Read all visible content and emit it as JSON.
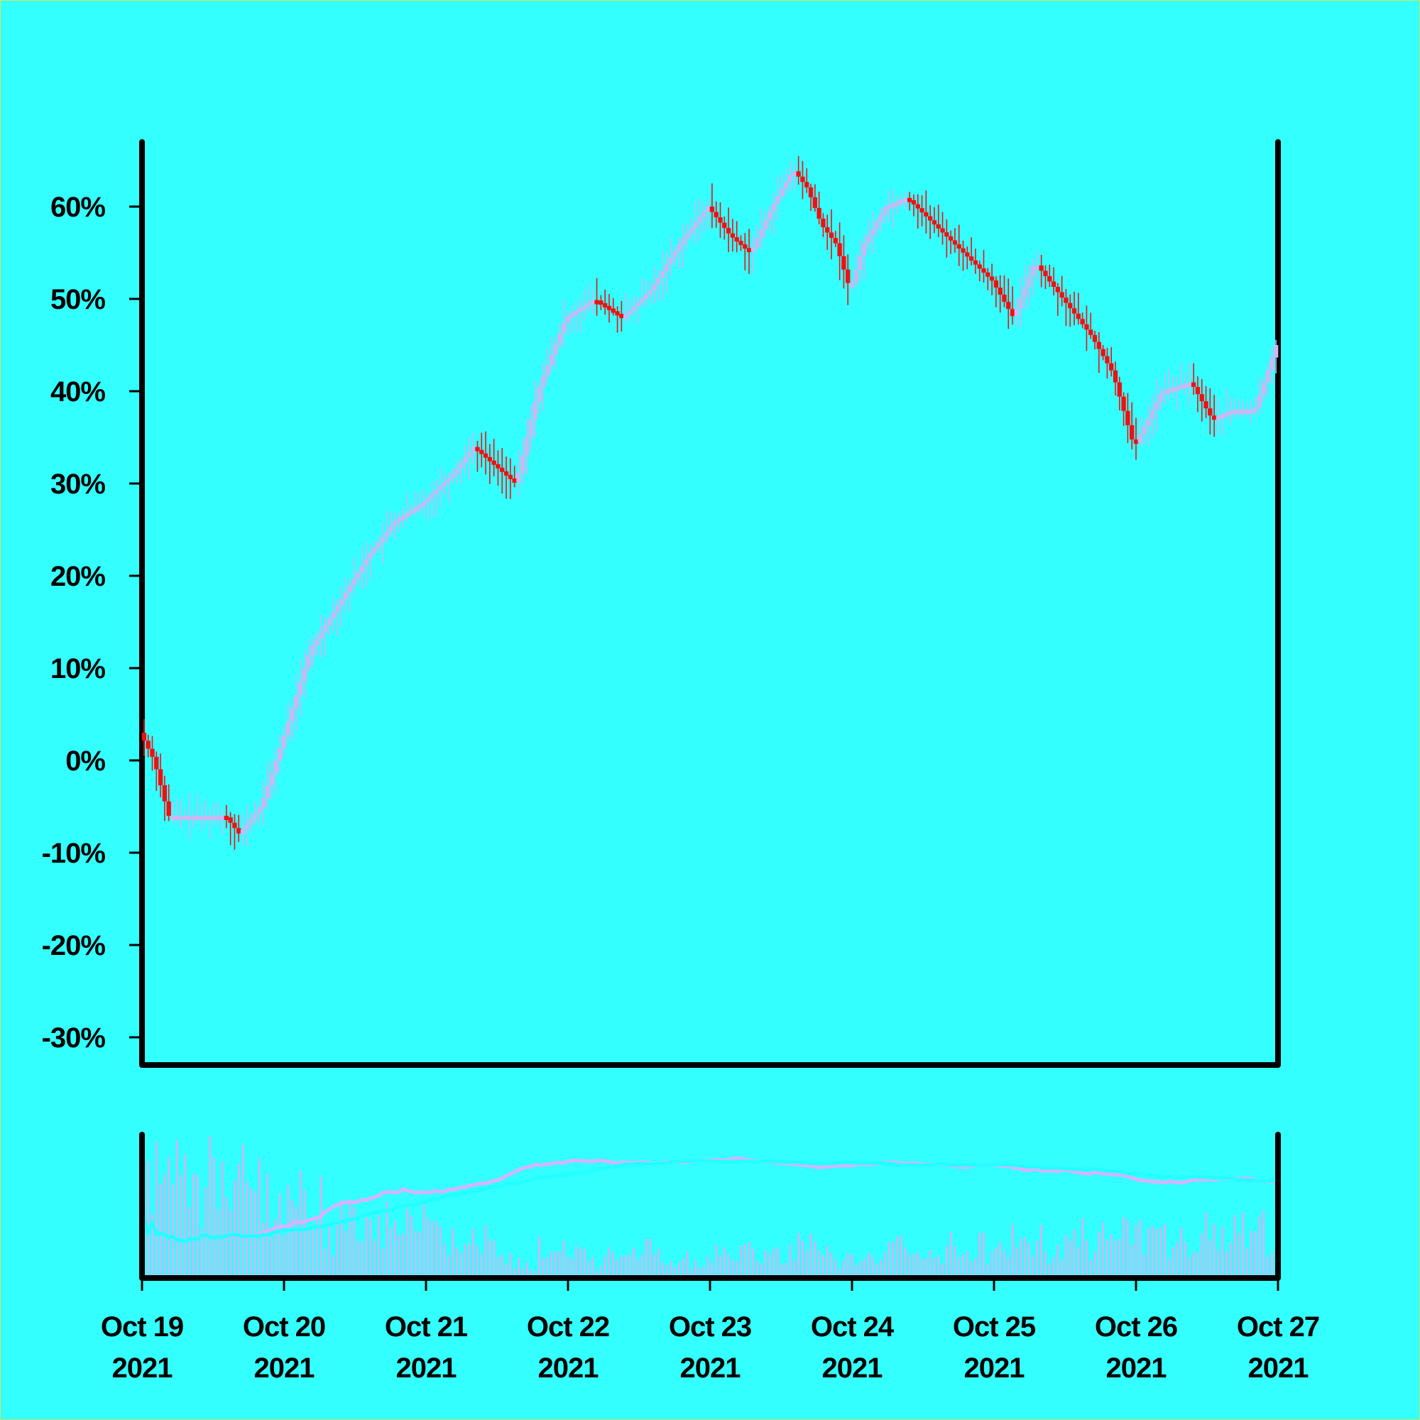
{
  "colors": {
    "background": "#33ffff",
    "axis": "#000000",
    "up_candle": "#c9b8f2",
    "down_candle": "#ee1111",
    "volume_bar": "#c9b8f2",
    "ma_fast": "#d6b3ff",
    "ma_slow": "#22ffff"
  },
  "chart_data": {
    "type": "candlestick",
    "title": "",
    "xlabel": "",
    "ylabel": "",
    "ylim": [
      -33,
      67
    ],
    "y_ticks": [
      60,
      50,
      40,
      30,
      20,
      10,
      0,
      -10,
      -20,
      -30
    ],
    "y_tick_labels": [
      "60%",
      "50%",
      "40%",
      "30%",
      "20%",
      "10%",
      "0%",
      "-10%",
      "-20%",
      "-30%"
    ],
    "x_range": [
      "2021-10-19",
      "2021-10-27"
    ],
    "x_ticks": [
      "2021-10-19",
      "2021-10-20",
      "2021-10-21",
      "2021-10-22",
      "2021-10-23",
      "2021-10-24",
      "2021-10-25",
      "2021-10-26",
      "2021-10-27"
    ],
    "x_tick_labels": [
      {
        "day": "Oct 19",
        "year": "2021"
      },
      {
        "day": "Oct 20",
        "year": "2021"
      },
      {
        "day": "Oct 21",
        "year": "2021"
      },
      {
        "day": "Oct 22",
        "year": "2021"
      },
      {
        "day": "Oct 23",
        "year": "2021"
      },
      {
        "day": "Oct 24",
        "year": "2021"
      },
      {
        "day": "Oct 25",
        "year": "2021"
      },
      {
        "day": "Oct 26",
        "year": "2021"
      },
      {
        "day": "Oct 27",
        "year": "2021"
      }
    ],
    "close_path": {
      "days": [
        0,
        0.1,
        0.2,
        0.4,
        0.6,
        0.7,
        0.85,
        1.0,
        1.2,
        1.4,
        1.6,
        1.8,
        2.0,
        2.2,
        2.35,
        2.5,
        2.65,
        2.8,
        3.0,
        3.2,
        3.4,
        3.6,
        3.8,
        4.0,
        4.15,
        4.3,
        4.45,
        4.6,
        4.7,
        4.8,
        4.9,
        5.0,
        5.1,
        5.25,
        5.4,
        5.6,
        5.8,
        6.0,
        6.15,
        6.3,
        6.5,
        6.7,
        6.85,
        7.0,
        7.2,
        7.4,
        7.55,
        7.7,
        7.85,
        8.0
      ],
      "values": [
        3,
        0,
        -6,
        -6,
        -6,
        -8,
        -5,
        2,
        12,
        17,
        22,
        26,
        28,
        31,
        34,
        32,
        30,
        40,
        48,
        50,
        48,
        51,
        56,
        60,
        57,
        55,
        60,
        64,
        62,
        58,
        56,
        51,
        56,
        60,
        61,
        58,
        55,
        52,
        48,
        54,
        50,
        46,
        42,
        34,
        40,
        41,
        37,
        38,
        38,
        45
      ]
    },
    "volume": {
      "ylim": [
        0,
        100
      ],
      "bars": [
        55,
        82,
        44,
        96,
        66,
        73,
        85,
        65,
        97,
        72,
        87,
        49,
        73,
        72,
        33,
        63,
        100,
        85,
        47,
        82,
        56,
        47,
        68,
        80,
        94,
        67,
        63,
        60,
        84,
        38,
        73,
        27,
        41,
        59,
        28,
        65,
        54,
        49,
        75,
        61,
        35,
        32,
        40,
        71,
        19,
        36,
        14,
        37,
        54,
        32,
        54,
        49,
        25,
        24,
        42,
        40,
        25,
        43,
        19,
        53,
        34,
        39,
        29,
        30,
        48,
        43,
        32,
        31,
        51,
        41,
        39,
        39,
        35,
        22,
        14,
        34,
        20,
        16,
        22,
        23,
        33,
        21,
        15,
        36,
        26,
        25,
        13,
        15,
        8,
        16,
        5,
        12,
        5,
        9,
        4,
        3,
        28,
        12,
        13,
        17,
        17,
        17,
        25,
        13,
        12,
        21,
        19,
        19,
        10,
        13,
        3,
        7,
        14,
        20,
        16,
        11,
        14,
        14,
        15,
        20,
        11,
        15,
        26,
        26,
        15,
        19,
        9,
        7,
        10,
        6,
        9,
        12,
        17,
        5,
        11,
        6,
        6,
        14,
        9,
        22,
        14,
        20,
        15,
        11,
        10,
        21,
        22,
        24,
        19,
        10,
        8,
        18,
        15,
        19,
        20,
        8,
        9,
        22,
        11,
        30,
        25,
        18,
        30,
        24,
        18,
        14,
        21,
        16,
        11,
        5,
        11,
        16,
        15,
        7,
        10,
        12,
        16,
        14,
        8,
        11,
        16,
        24,
        24,
        28,
        28,
        20,
        15,
        15,
        17,
        12,
        12,
        18,
        12,
        14,
        8,
        21,
        31,
        21,
        13,
        15,
        17,
        10,
        12,
        30,
        31,
        8,
        17,
        20,
        24,
        18,
        13,
        37,
        20,
        26,
        27,
        23,
        14,
        25,
        36,
        17,
        8,
        13,
        22,
        11,
        29,
        25,
        33,
        20,
        41,
        25,
        11,
        17,
        31,
        38,
        25,
        29,
        25,
        26,
        42,
        40,
        22,
        36,
        40,
        15,
        34,
        35,
        33,
        34,
        37,
        12,
        20,
        24,
        34,
        24,
        13,
        17,
        16,
        30,
        45,
        25,
        37,
        18,
        35,
        17,
        24,
        43,
        30,
        45,
        19,
        32,
        31,
        42,
        47,
        13,
        17,
        8
      ]
    }
  }
}
